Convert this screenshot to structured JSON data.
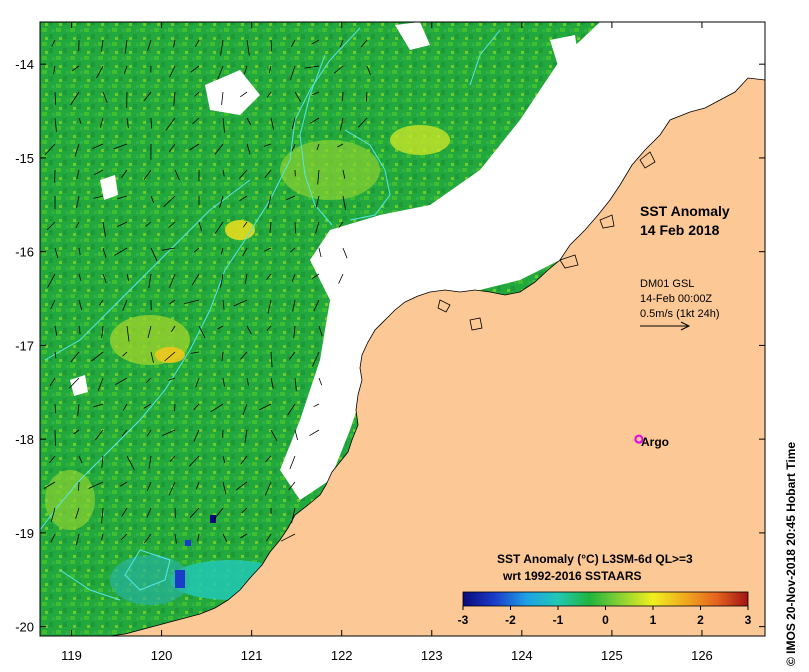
{
  "map": {
    "title_line1": "SST Anomaly",
    "title_line2": "14 Feb 2018",
    "vector_info": [
      "DM01 GSL",
      "14-Feb 00:00Z",
      "0.5m/s (1kt 24h)"
    ],
    "argo_label": "Argo",
    "x_ticks": [
      "119",
      "120",
      "121",
      "122",
      "123",
      "124",
      "125",
      "126"
    ],
    "y_ticks": [
      "-14",
      "-15",
      "-16",
      "-17",
      "-18",
      "-19",
      "-20"
    ],
    "lon_range": [
      118.65,
      126.7
    ],
    "lat_range": [
      -13.55,
      -20.1
    ],
    "argo_float": {
      "lon": 125.3,
      "lat": -18.0
    },
    "land_color": "#fbc896",
    "ocean_color": "#21a43c"
  },
  "colorbar": {
    "title": "SST Anomaly (°C) L3SM-6d QL>=3",
    "subtitle": "wrt 1992-2016 SSTAARS",
    "ticks": [
      "-3",
      "-2",
      "-1",
      "0",
      "1",
      "2",
      "3"
    ],
    "range": [
      -3,
      3
    ],
    "colors": [
      "#0a0a7a",
      "#1a3cc8",
      "#1ea0e6",
      "#22c8b4",
      "#20b43c",
      "#8cd232",
      "#f0f01e",
      "#f0aa1e",
      "#e6641e",
      "#a01414"
    ]
  },
  "credit": "© IMOS 20-Nov-2018 20:45 Hobart Time"
}
